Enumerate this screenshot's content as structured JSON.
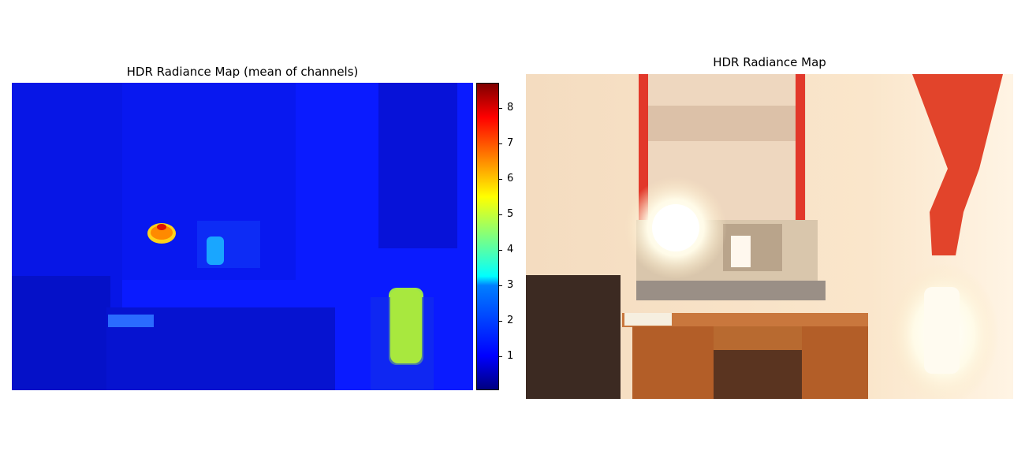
{
  "left_panel": {
    "title": "HDR Radiance Map (mean of channels)",
    "colormap": "jet",
    "colorbar": {
      "ticks": [
        "1",
        "2",
        "3",
        "4",
        "5",
        "6",
        "7",
        "8"
      ],
      "min": 0.05,
      "max": 8.7
    }
  },
  "right_panel": {
    "title": "HDR Radiance Map"
  },
  "chart_data": [
    {
      "type": "heatmap",
      "title": "HDR Radiance Map (mean of channels)",
      "colormap": "jet",
      "value_range": [
        0.05,
        8.7
      ],
      "colorbar_ticks": [
        1,
        2,
        3,
        4,
        5,
        6,
        7,
        8
      ],
      "regions": [
        {
          "value": 0.4
        },
        {
          "value": 7.5
        },
        {
          "value": 3.8
        },
        {
          "value": 2.3
        },
        {
          "value": 0.8
        }
      ]
    },
    {
      "type": "image",
      "title": "HDR Radiance Map"
    }
  ]
}
